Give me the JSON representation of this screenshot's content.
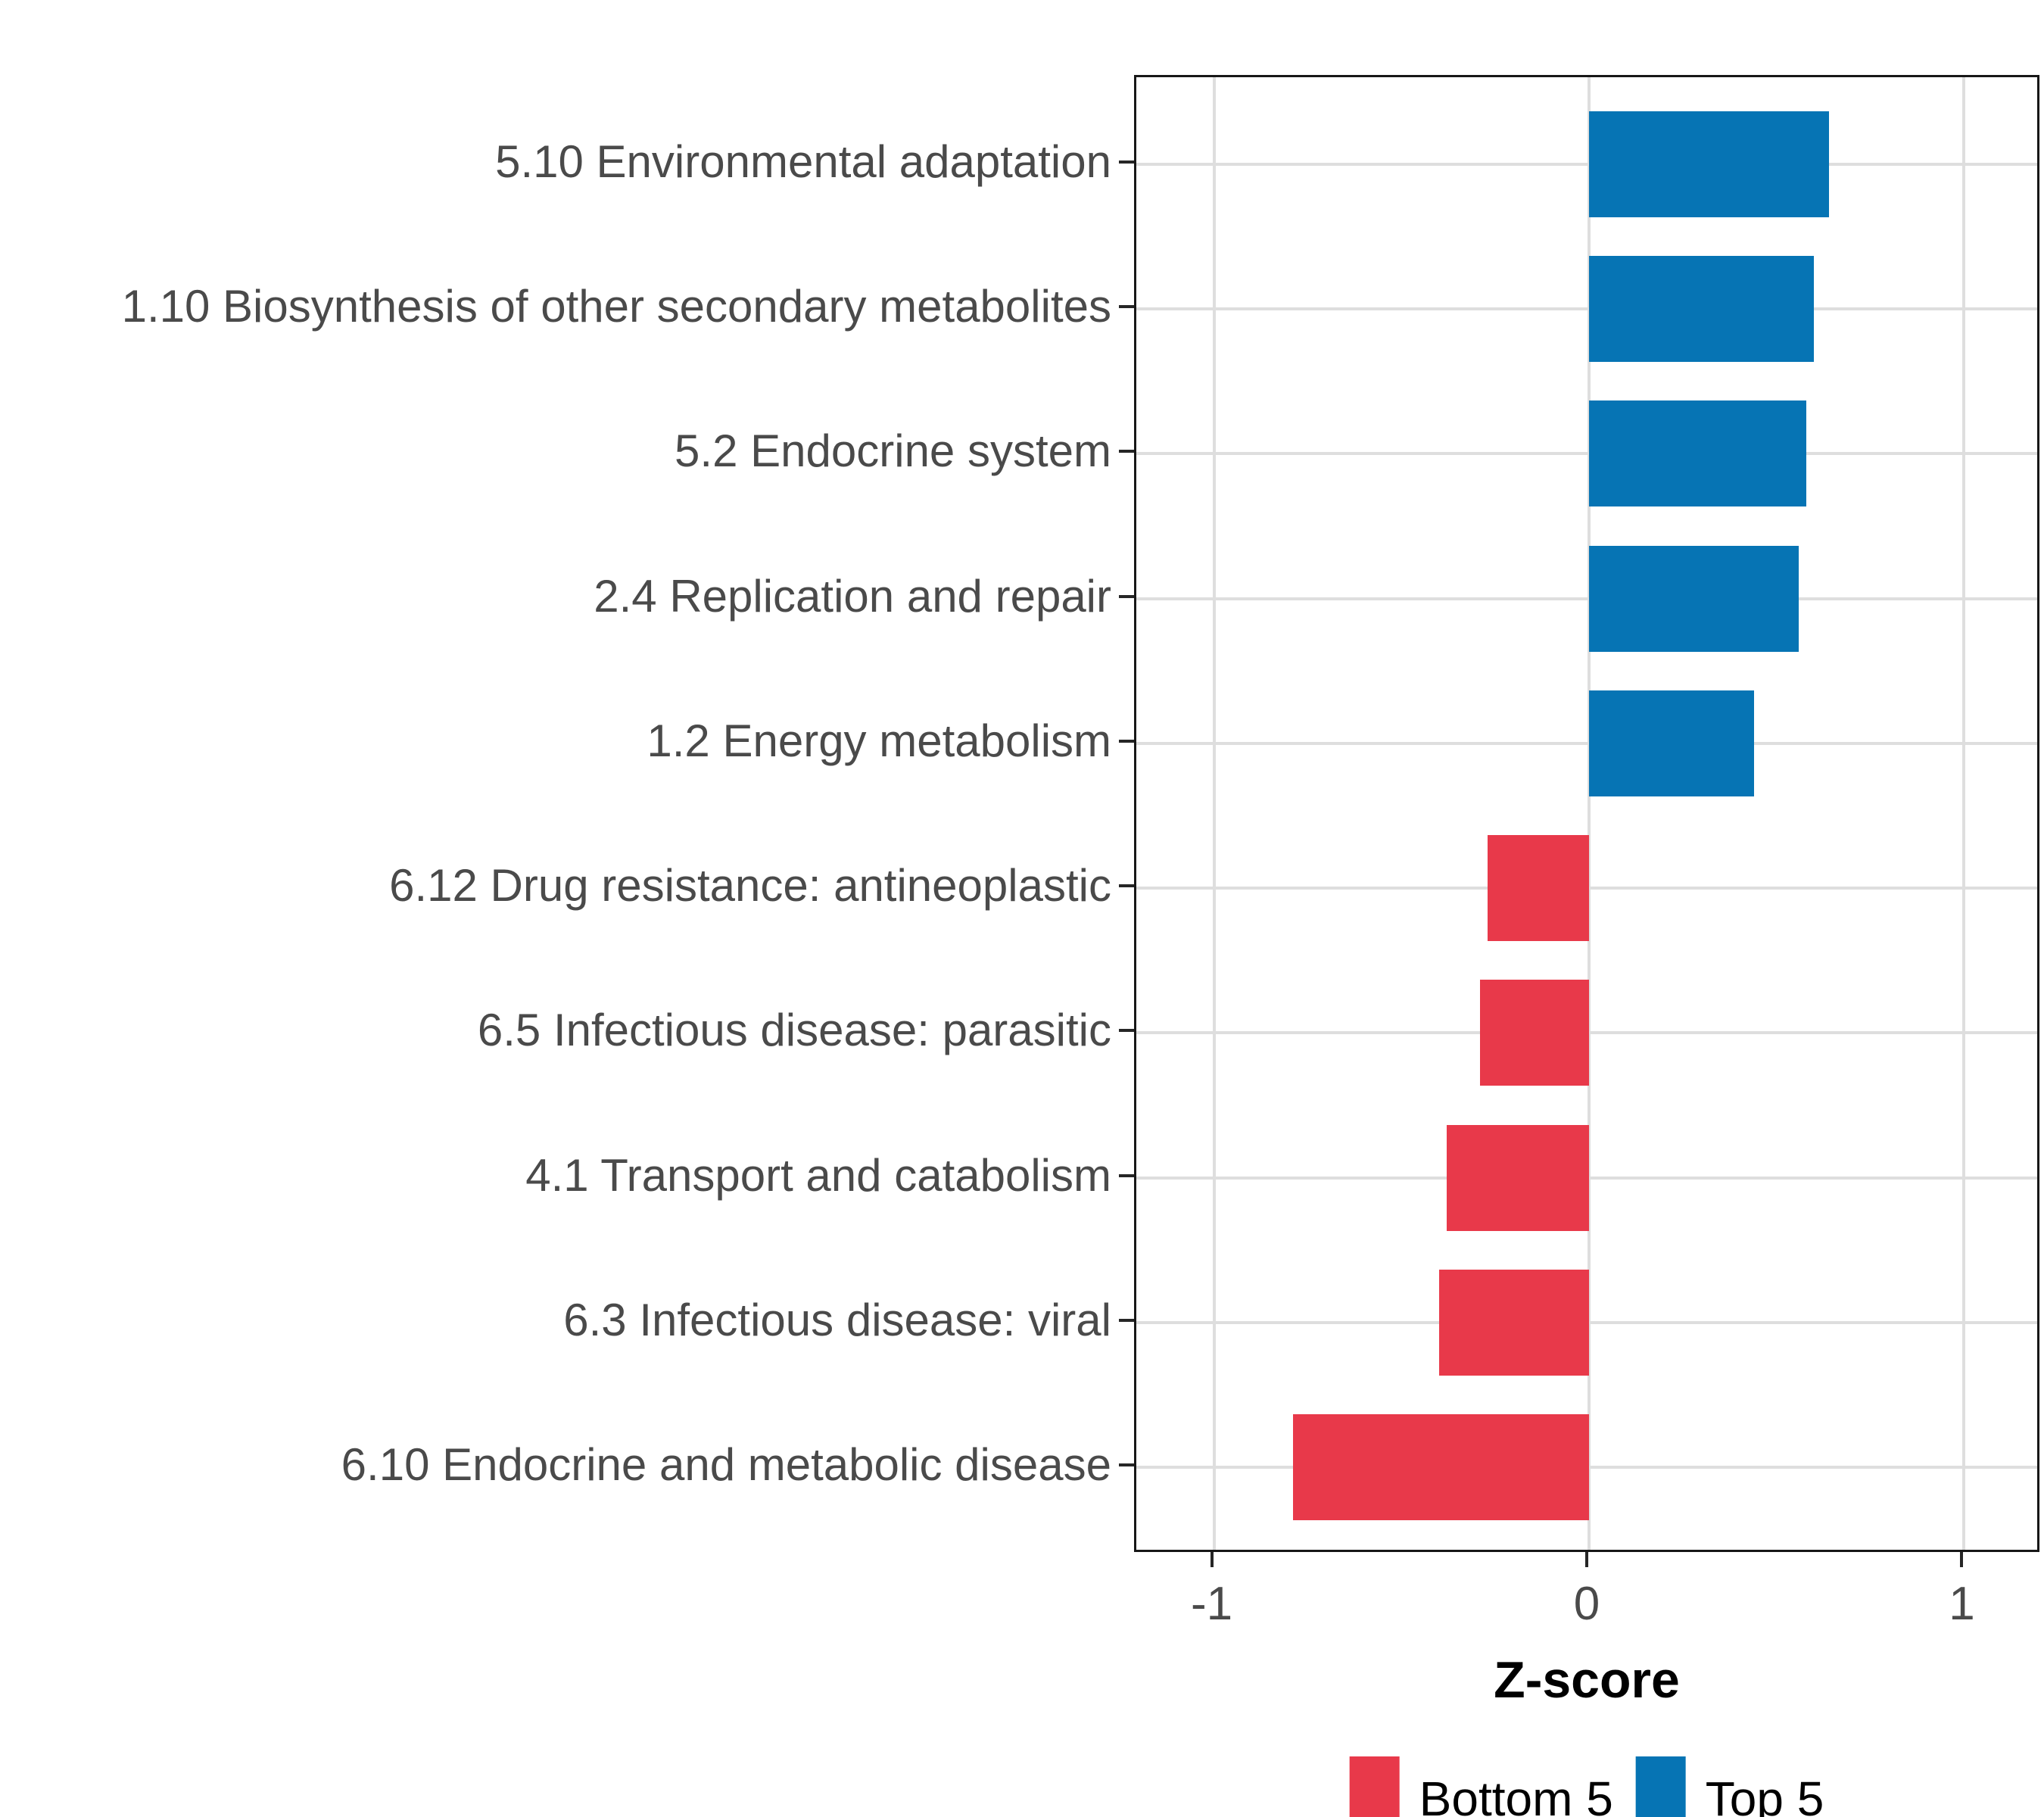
{
  "chart_data": {
    "type": "bar",
    "orientation": "horizontal",
    "xlabel": "Z-score",
    "xlim": [
      -1.207,
      1.207
    ],
    "x_ticks": [
      -1,
      0,
      1
    ],
    "x_tick_labels": [
      "-1",
      "0",
      "1"
    ],
    "grid": true,
    "legend_position": "bottom",
    "categories": [
      "5.10 Environmental adaptation",
      "1.10 Biosynthesis of other secondary metabolites",
      "5.2 Endocrine system",
      "2.4 Replication and repair",
      "1.2 Energy metabolism",
      "6.12 Drug resistance: antineoplastic",
      "6.5 Infectious disease: parasitic",
      "4.1 Transport and catabolism",
      "6.3 Infectious disease: viral",
      "6.10 Endocrine and metabolic disease"
    ],
    "values": [
      0.64,
      0.6,
      0.58,
      0.56,
      0.44,
      -0.27,
      -0.29,
      -0.38,
      -0.4,
      -0.79
    ],
    "groups": [
      "Top 5",
      "Top 5",
      "Top 5",
      "Top 5",
      "Top 5",
      "Bottom 5",
      "Bottom 5",
      "Bottom 5",
      "Bottom 5",
      "Bottom 5"
    ],
    "series": [
      {
        "name": "Top 5",
        "color": "#0674B4",
        "values": [
          0.64,
          0.6,
          0.58,
          0.56,
          0.44,
          null,
          null,
          null,
          null,
          null
        ]
      },
      {
        "name": "Bottom 5",
        "color": "#E8394A",
        "values": [
          null,
          null,
          null,
          null,
          null,
          -0.27,
          -0.29,
          -0.38,
          -0.4,
          -0.79
        ]
      }
    ],
    "legend": [
      {
        "label": "Bottom 5",
        "color": "#E8394A"
      },
      {
        "label": "Top 5",
        "color": "#0674B4"
      }
    ],
    "colors": {
      "Top 5": "#0674B4",
      "Bottom 5": "#E8394A",
      "grid": "#DEDEDE",
      "panel_border": "#171717",
      "axis_text": "#4A4A4A",
      "title_text": "#000000"
    }
  }
}
